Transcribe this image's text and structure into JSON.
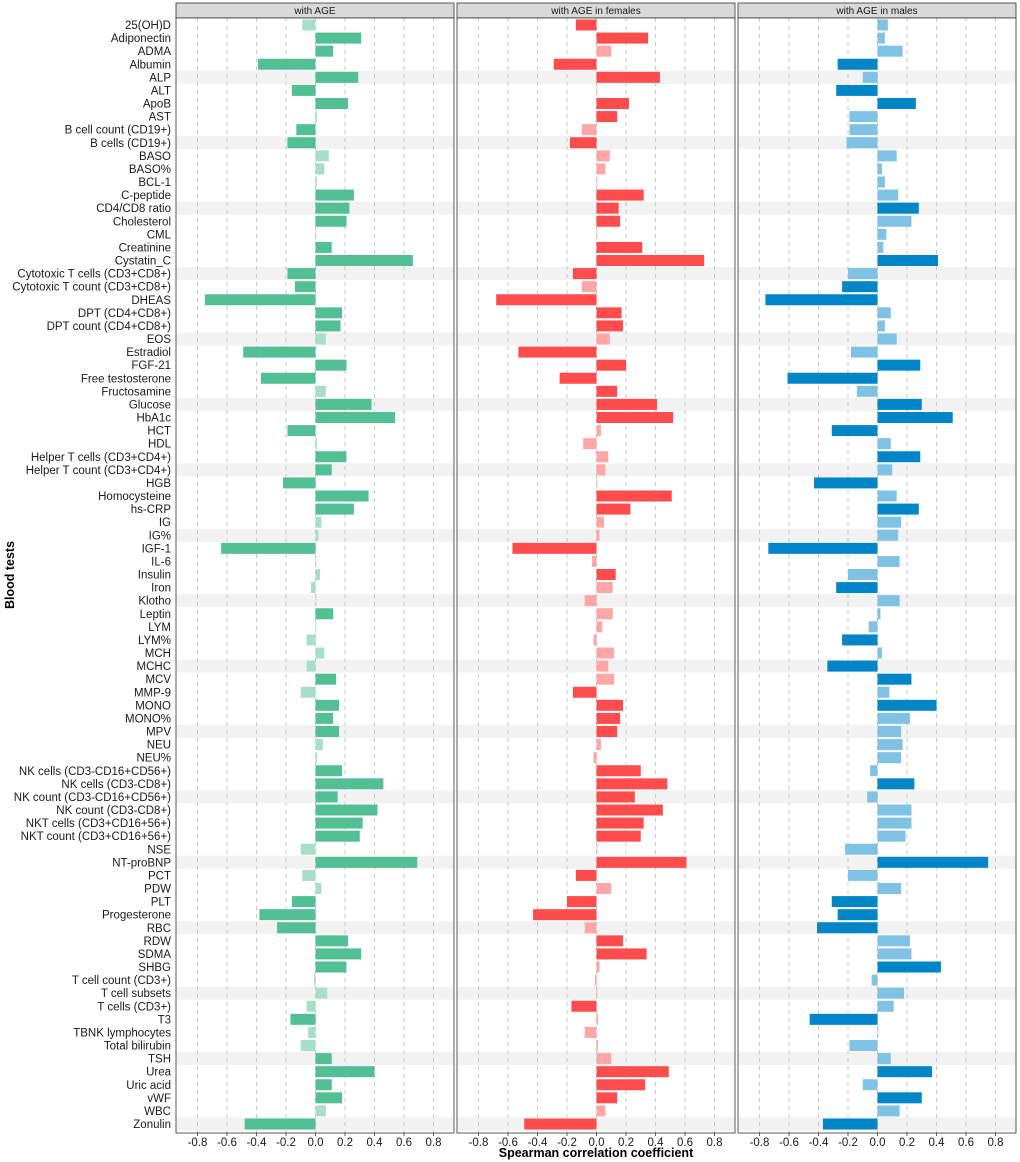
{
  "chart_data": {
    "type": "bar",
    "orientation": "horizontal",
    "xlabel": "Spearman correlation coefficient",
    "ylabel": "Blood tests",
    "xlim": [
      -0.95,
      0.95
    ],
    "xticks": [
      "-0.8",
      "-0.6",
      "-0.4",
      "-0.2",
      "0.0",
      "0.2",
      "0.4",
      "0.6",
      "0.8"
    ],
    "grid": "vertical dashed",
    "categories": [
      "25(OH)D",
      "Adiponectin",
      "ADMA",
      "Albumin",
      "ALP",
      "ALT",
      "ApoB",
      "AST",
      "B cell count (CD19+)",
      "B cells (CD19+)",
      "BASO",
      "BASO%",
      "BCL-1",
      "C-peptide",
      "CD4/CD8 ratio",
      "Cholesterol",
      "CML",
      "Creatinine",
      "Cystatin_C",
      "Cytotoxic T cells (CD3+CD8+)",
      "Cytotoxic T count (CD3+CD8+)",
      "DHEAS",
      "DPT (CD4+CD8+)",
      "DPT count (CD4+CD8+)",
      "EOS",
      "Estradiol",
      "FGF-21",
      "Free testosterone",
      "Fructosamine",
      "Glucose",
      "HbA1c",
      "HCT",
      "HDL",
      "Helper T cells (CD3+CD4+)",
      "Helper T count (CD3+CD4+)",
      "HGB",
      "Homocysteine",
      "hs-CRP",
      "IG",
      "IG%",
      "IGF-1",
      "IL-6",
      "Insulin",
      "Iron",
      "Klotho",
      "Leptin",
      "LYM",
      "LYM%",
      "MCH",
      "MCHC",
      "MCV",
      "MMP-9",
      "MONO",
      "MONO%",
      "MPV",
      "NEU",
      "NEU%",
      "NK cells (CD3-CD16+CD56+)",
      "NK cells (CD3-CD8+)",
      "NK count (CD3-CD16+CD56+)",
      "NK count (CD3-CD8+)",
      "NKT cells (CD3+CD16+56+)",
      "NKT count (CD3+CD16+56+)",
      "NSE",
      "NT-proBNP",
      "PCT",
      "PDW",
      "PLT",
      "Progesterone",
      "RBC",
      "RDW",
      "SDMA",
      "SHBG",
      "T cell count (CD3+)",
      "T cell subsets",
      "T cells (CD3+)",
      "T3",
      "TBNK lymphocytes",
      "Total bilirubin",
      "TSH",
      "Urea",
      "Uric acid",
      "vWF",
      "WBC",
      "Zonulin"
    ],
    "panels": [
      {
        "title": "with AGE",
        "color": "#52BF95",
        "light_color": "#A8DFC8",
        "values": [
          -0.09,
          0.31,
          0.12,
          -0.39,
          0.29,
          -0.16,
          0.22,
          0.01,
          -0.13,
          -0.19,
          0.09,
          0.06,
          0.01,
          0.26,
          0.23,
          0.21,
          0.005,
          0.11,
          0.66,
          -0.19,
          -0.14,
          -0.75,
          0.18,
          0.17,
          0.07,
          -0.49,
          0.21,
          -0.37,
          0.07,
          0.38,
          0.54,
          -0.19,
          0.01,
          0.21,
          0.11,
          -0.22,
          0.36,
          0.26,
          0.04,
          0.02,
          -0.64,
          0.005,
          0.03,
          -0.03,
          0.005,
          0.12,
          0.005,
          -0.06,
          0.06,
          -0.06,
          0.14,
          -0.1,
          0.16,
          0.12,
          0.16,
          0.05,
          0.01,
          0.18,
          0.46,
          0.15,
          0.42,
          0.32,
          0.3,
          -0.1,
          0.69,
          -0.09,
          0.04,
          -0.16,
          -0.38,
          -0.26,
          0.22,
          0.31,
          0.21,
          -0.01,
          0.08,
          -0.06,
          -0.17,
          -0.05,
          -0.1,
          0.11,
          0.4,
          0.11,
          0.18,
          0.07,
          -0.48
        ],
        "significant": [
          0,
          1,
          1,
          1,
          1,
          1,
          1,
          0,
          1,
          1,
          0,
          0,
          0,
          1,
          1,
          1,
          0,
          1,
          1,
          1,
          1,
          1,
          1,
          1,
          0,
          1,
          1,
          1,
          0,
          1,
          1,
          1,
          0,
          1,
          1,
          1,
          1,
          1,
          0,
          0,
          1,
          0,
          0,
          0,
          0,
          1,
          0,
          0,
          0,
          0,
          1,
          0,
          1,
          1,
          1,
          0,
          0,
          1,
          1,
          1,
          1,
          1,
          1,
          0,
          1,
          0,
          0,
          1,
          1,
          1,
          1,
          1,
          1,
          0,
          0,
          0,
          1,
          0,
          0,
          1,
          1,
          1,
          1,
          0,
          1
        ]
      },
      {
        "title": "with AGE in females",
        "color": "#FF4D4D",
        "light_color": "#FFA6A6",
        "values": [
          -0.14,
          0.35,
          0.1,
          -0.29,
          0.43,
          0.005,
          0.22,
          0.14,
          -0.1,
          -0.18,
          0.09,
          0.06,
          0.005,
          0.32,
          0.15,
          0.16,
          0.003,
          0.31,
          0.73,
          -0.16,
          -0.1,
          -0.68,
          0.17,
          0.18,
          0.09,
          -0.53,
          0.2,
          -0.25,
          0.14,
          0.41,
          0.52,
          0.03,
          -0.09,
          0.08,
          0.06,
          0.005,
          0.51,
          0.23,
          0.05,
          0.02,
          -0.57,
          -0.03,
          0.13,
          0.11,
          -0.08,
          0.11,
          0.04,
          -0.02,
          0.12,
          0.08,
          0.12,
          -0.16,
          0.18,
          0.16,
          0.14,
          0.03,
          -0.02,
          0.3,
          0.48,
          0.26,
          0.45,
          0.32,
          0.3,
          0.005,
          0.61,
          -0.14,
          0.1,
          -0.2,
          -0.43,
          -0.08,
          0.18,
          0.34,
          0.02,
          -0.01,
          0.005,
          -0.17,
          0.01,
          -0.08,
          0.01,
          0.1,
          0.49,
          0.33,
          0.14,
          0.06,
          -0.49
        ],
        "significant": [
          1,
          1,
          0,
          1,
          1,
          0,
          1,
          1,
          0,
          1,
          0,
          0,
          0,
          1,
          1,
          1,
          0,
          1,
          1,
          1,
          0,
          1,
          1,
          1,
          0,
          1,
          1,
          1,
          1,
          1,
          1,
          0,
          0,
          0,
          0,
          0,
          1,
          1,
          0,
          0,
          1,
          0,
          1,
          0,
          0,
          0,
          0,
          0,
          0,
          0,
          0,
          1,
          1,
          1,
          1,
          0,
          0,
          1,
          1,
          1,
          1,
          1,
          1,
          0,
          1,
          1,
          0,
          1,
          1,
          0,
          1,
          1,
          0,
          0,
          0,
          1,
          0,
          0,
          0,
          0,
          1,
          1,
          1,
          0,
          1
        ]
      },
      {
        "title": "with AGE in males",
        "color": "#0086C7",
        "light_color": "#80C2E3",
        "values": [
          0.07,
          0.05,
          0.17,
          -0.27,
          -0.1,
          -0.28,
          0.26,
          -0.19,
          -0.19,
          -0.21,
          0.13,
          0.03,
          0.05,
          0.14,
          0.28,
          0.23,
          0.06,
          0.04,
          0.41,
          -0.2,
          -0.24,
          -0.76,
          0.09,
          0.05,
          0.13,
          -0.18,
          0.29,
          -0.61,
          -0.14,
          0.3,
          0.51,
          -0.31,
          0.09,
          0.29,
          0.1,
          -0.43,
          0.13,
          0.28,
          0.16,
          0.14,
          -0.74,
          0.15,
          -0.2,
          -0.28,
          0.15,
          0.02,
          -0.06,
          -0.24,
          0.03,
          -0.34,
          0.23,
          0.08,
          0.4,
          0.22,
          0.16,
          0.17,
          0.16,
          -0.05,
          0.25,
          -0.07,
          0.23,
          0.23,
          0.19,
          -0.22,
          0.75,
          -0.2,
          0.16,
          -0.31,
          -0.27,
          -0.41,
          0.22,
          0.23,
          0.43,
          -0.04,
          0.18,
          0.11,
          -0.46,
          0.005,
          -0.19,
          0.09,
          0.37,
          -0.1,
          0.3,
          0.15,
          -0.37
        ],
        "significant": [
          0,
          0,
          0,
          1,
          0,
          1,
          1,
          0,
          0,
          0,
          0,
          0,
          0,
          0,
          1,
          0,
          0,
          0,
          1,
          0,
          1,
          1,
          0,
          0,
          0,
          0,
          1,
          1,
          0,
          1,
          1,
          1,
          0,
          1,
          0,
          1,
          0,
          1,
          0,
          0,
          1,
          0,
          0,
          1,
          0,
          0,
          0,
          1,
          0,
          1,
          1,
          0,
          1,
          0,
          0,
          0,
          0,
          0,
          1,
          0,
          0,
          0,
          0,
          0,
          1,
          0,
          0,
          1,
          1,
          1,
          0,
          0,
          1,
          0,
          0,
          0,
          1,
          0,
          0,
          0,
          1,
          0,
          1,
          0,
          1
        ]
      }
    ]
  }
}
